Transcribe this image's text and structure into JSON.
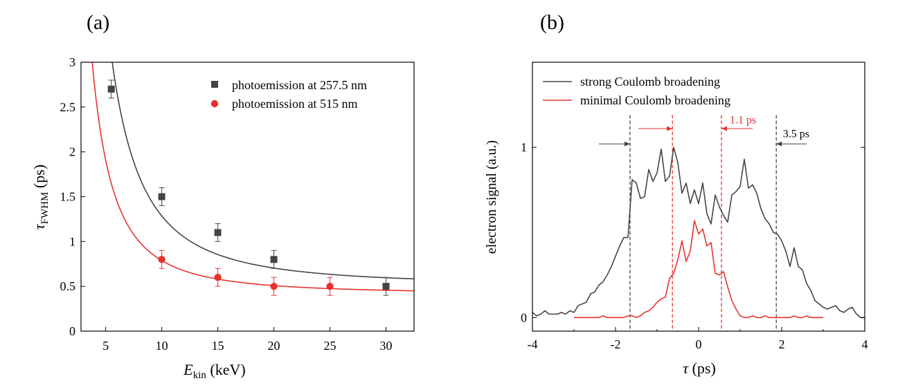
{
  "chart_data": [
    {
      "type": "scatter",
      "panel_label": "(a)",
      "xlabel_main": "E",
      "xlabel_sub": "kin",
      "xlabel_unit": " (keV)",
      "ylabel_main": "τ",
      "ylabel_sub": "FWHM",
      "ylabel_unit": " (ps)",
      "xlim": [
        2.8,
        32.5
      ],
      "ylim": [
        0,
        3
      ],
      "xticks": [
        5,
        10,
        15,
        20,
        25,
        30
      ],
      "xtick_labels": [
        "5",
        "10",
        "15",
        "20",
        "25",
        "30"
      ],
      "yticks": [
        0,
        0.5,
        1,
        1.5,
        2,
        2.5,
        3
      ],
      "ytick_labels": [
        "0",
        "0.5",
        "1",
        "1.5",
        "2",
        "2.5",
        "3"
      ],
      "legend_position": "top-right",
      "series": [
        {
          "name": "photoemission at 257.5 nm",
          "color": "#444444",
          "marker": "square",
          "x": [
            5.5,
            10,
            15,
            20,
            30
          ],
          "y": [
            2.7,
            1.5,
            1.1,
            0.8,
            0.5
          ],
          "err": [
            0.1,
            0.1,
            0.1,
            0.1,
            0.1
          ],
          "fit": {
            "model": "a/E^2 + c",
            "a": 77.6,
            "c": 0.51
          }
        },
        {
          "name": "photoemission at 515 nm",
          "color": "#e8312f",
          "marker": "circle",
          "x": [
            10,
            15,
            20,
            25
          ],
          "y": [
            0.8,
            0.6,
            0.5,
            0.5
          ],
          "err": [
            0.1,
            0.1,
            0.1,
            0.1
          ],
          "fit": {
            "model": "a/E^2 + c",
            "a": 37.3,
            "c": 0.415
          }
        }
      ]
    },
    {
      "type": "line",
      "panel_label": "(b)",
      "xlabel_main": "τ",
      "xlabel_unit": " (ps)",
      "ylabel": "electron signal (a.u.)",
      "xlim": [
        -4,
        4
      ],
      "ylim": [
        -0.08,
        1.5
      ],
      "xticks": [
        -4,
        -2,
        0,
        2,
        4
      ],
      "xtick_labels": [
        "-4",
        "-2",
        "0",
        "2",
        "4"
      ],
      "yticks": [
        0,
        1
      ],
      "ytick_labels": [
        "0",
        "1"
      ],
      "legend_position": "top-left",
      "series": [
        {
          "name": "strong Coulomb broadening",
          "color": "#444444",
          "x": [
            -4.0,
            -3.9,
            -3.8,
            -3.7,
            -3.6,
            -3.5,
            -3.4,
            -3.3,
            -3.2,
            -3.1,
            -3.0,
            -2.9,
            -2.8,
            -2.7,
            -2.6,
            -2.5,
            -2.4,
            -2.3,
            -2.2,
            -2.1,
            -2.0,
            -1.9,
            -1.8,
            -1.7,
            -1.6,
            -1.5,
            -1.4,
            -1.3,
            -1.2,
            -1.1,
            -1.0,
            -0.9,
            -0.8,
            -0.7,
            -0.6,
            -0.5,
            -0.4,
            -0.3,
            -0.2,
            -0.1,
            0.0,
            0.1,
            0.2,
            0.3,
            0.4,
            0.5,
            0.6,
            0.7,
            0.8,
            0.9,
            1.0,
            1.1,
            1.2,
            1.3,
            1.4,
            1.5,
            1.6,
            1.7,
            1.8,
            1.9,
            2.0,
            2.1,
            2.2,
            2.3,
            2.4,
            2.5,
            2.6,
            2.7,
            2.8,
            2.9,
            3.0,
            3.1,
            3.2,
            3.3,
            3.4,
            3.5,
            3.6,
            3.7,
            3.8,
            3.9,
            4.0
          ],
          "y": [
            0.03,
            0.01,
            0.02,
            0.04,
            0.02,
            0.02,
            0.02,
            0.03,
            0.02,
            0.04,
            0.03,
            0.07,
            0.08,
            0.09,
            0.14,
            0.15,
            0.19,
            0.21,
            0.25,
            0.3,
            0.36,
            0.42,
            0.47,
            0.47,
            0.81,
            0.79,
            0.7,
            0.71,
            0.87,
            0.8,
            0.85,
            0.99,
            0.8,
            0.83,
            1.0,
            0.91,
            0.73,
            0.79,
            0.67,
            0.75,
            0.67,
            0.79,
            0.61,
            0.55,
            0.72,
            0.65,
            0.6,
            0.56,
            0.72,
            0.74,
            0.77,
            0.93,
            0.76,
            0.78,
            0.73,
            0.64,
            0.58,
            0.55,
            0.5,
            0.49,
            0.45,
            0.39,
            0.3,
            0.41,
            0.3,
            0.28,
            0.2,
            0.16,
            0.1,
            0.08,
            0.06,
            0.05,
            0.06,
            0.07,
            0.04,
            0.03,
            0.05,
            0.06,
            0.02,
            0.0,
            0.0
          ]
        },
        {
          "name": "minimal Coulomb broadening",
          "color": "#e8312f",
          "x": [
            -3.0,
            -2.9,
            -2.8,
            -2.7,
            -2.6,
            -2.5,
            -2.4,
            -2.3,
            -2.2,
            -2.1,
            -2.0,
            -1.9,
            -1.8,
            -1.7,
            -1.6,
            -1.5,
            -1.4,
            -1.3,
            -1.2,
            -1.1,
            -1.0,
            -0.9,
            -0.8,
            -0.7,
            -0.6,
            -0.5,
            -0.4,
            -0.3,
            -0.2,
            -0.1,
            0.0,
            0.1,
            0.2,
            0.3,
            0.4,
            0.5,
            0.6,
            0.7,
            0.8,
            0.9,
            1.0,
            1.1,
            1.2,
            1.3,
            1.4,
            1.5,
            1.6,
            1.7,
            1.8,
            1.9,
            2.0,
            2.1,
            2.2,
            2.3,
            2.4,
            2.5,
            2.6,
            2.7,
            2.8,
            2.9,
            3.0
          ],
          "y": [
            0.0,
            0.0,
            0.0,
            0.0,
            0.0,
            0.0,
            0.0,
            0.01,
            0.0,
            0.0,
            0.0,
            0.0,
            0.0,
            0.01,
            0.01,
            0.0,
            0.01,
            0.03,
            0.04,
            0.06,
            0.09,
            0.11,
            0.12,
            0.23,
            0.26,
            0.34,
            0.45,
            0.33,
            0.39,
            0.57,
            0.49,
            0.52,
            0.42,
            0.44,
            0.26,
            0.25,
            0.27,
            0.18,
            0.1,
            0.05,
            0.01,
            0.0,
            0.0,
            0.01,
            0.0,
            0.0,
            0.01,
            0.0,
            0.0,
            0.0,
            0.0,
            0.0,
            0.0,
            0.01,
            0.0,
            0.0,
            0.01,
            0.0,
            0.0,
            0.0,
            0.0
          ]
        }
      ],
      "vlines": [
        {
          "x": -1.65,
          "color": "#444444"
        },
        {
          "x": -0.63,
          "color": "#e8312f"
        },
        {
          "x": 0.55,
          "color": "#e8312f"
        },
        {
          "x": 1.87,
          "color": "#444444"
        }
      ],
      "arrows": [
        {
          "from": -2.4,
          "to": -1.65,
          "y": 1.02,
          "color": "#444444"
        },
        {
          "from": 1.87,
          "to": 2.6,
          "y": 1.02,
          "color": "#444444"
        },
        {
          "from": -1.45,
          "to": -0.63,
          "y": 1.11,
          "color": "#e8312f"
        },
        {
          "from": 0.55,
          "to": 1.3,
          "y": 1.11,
          "color": "#e8312f"
        }
      ],
      "annotations": [
        {
          "text": "1.1 ps",
          "x": 0.75,
          "y": 1.14,
          "color": "#e8312f"
        },
        {
          "text": "3.5 ps",
          "x": 2.03,
          "y": 1.06,
          "color": "#000000"
        }
      ]
    }
  ]
}
